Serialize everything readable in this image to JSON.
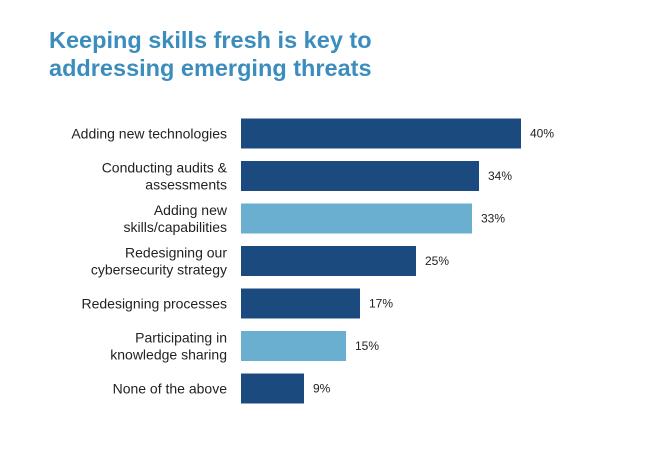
{
  "title": "Keeping skills fresh is key to\naddressing emerging threats",
  "colors": {
    "title": "#3b8dbd",
    "dark_bar": "#1b4b7e",
    "light_bar": "#6aaed0",
    "text": "#222222"
  },
  "chart_data": {
    "type": "bar",
    "orientation": "horizontal",
    "title": "Keeping skills fresh is key to addressing emerging threats",
    "xlabel": "",
    "ylabel": "",
    "xlim": [
      0,
      40
    ],
    "grid": false,
    "legend": "none",
    "categories": [
      "Adding new technologies",
      "Conducting audits & assessments",
      "Adding new skills/capabilities",
      "Redesigning our cybersecurity strategy",
      "Redesigning processes",
      "Participating in knowledge sharing",
      "None of the above"
    ],
    "category_lines": [
      [
        "Adding new technologies"
      ],
      [
        "Conducting audits &",
        "assessments"
      ],
      [
        "Adding new",
        "skills/capabilities"
      ],
      [
        "Redesigning our",
        "cybersecurity strategy"
      ],
      [
        "Redesigning processes"
      ],
      [
        "Participating in",
        "knowledge sharing"
      ],
      [
        "None of the above"
      ]
    ],
    "values": [
      40,
      34,
      33,
      25,
      17,
      15,
      9
    ],
    "value_labels": [
      "40%",
      "34%",
      "33%",
      "25%",
      "17%",
      "15%",
      "9%"
    ],
    "bar_colors": [
      "#1b4b7e",
      "#1b4b7e",
      "#6aaed0",
      "#1b4b7e",
      "#1b4b7e",
      "#6aaed0",
      "#1b4b7e"
    ]
  }
}
